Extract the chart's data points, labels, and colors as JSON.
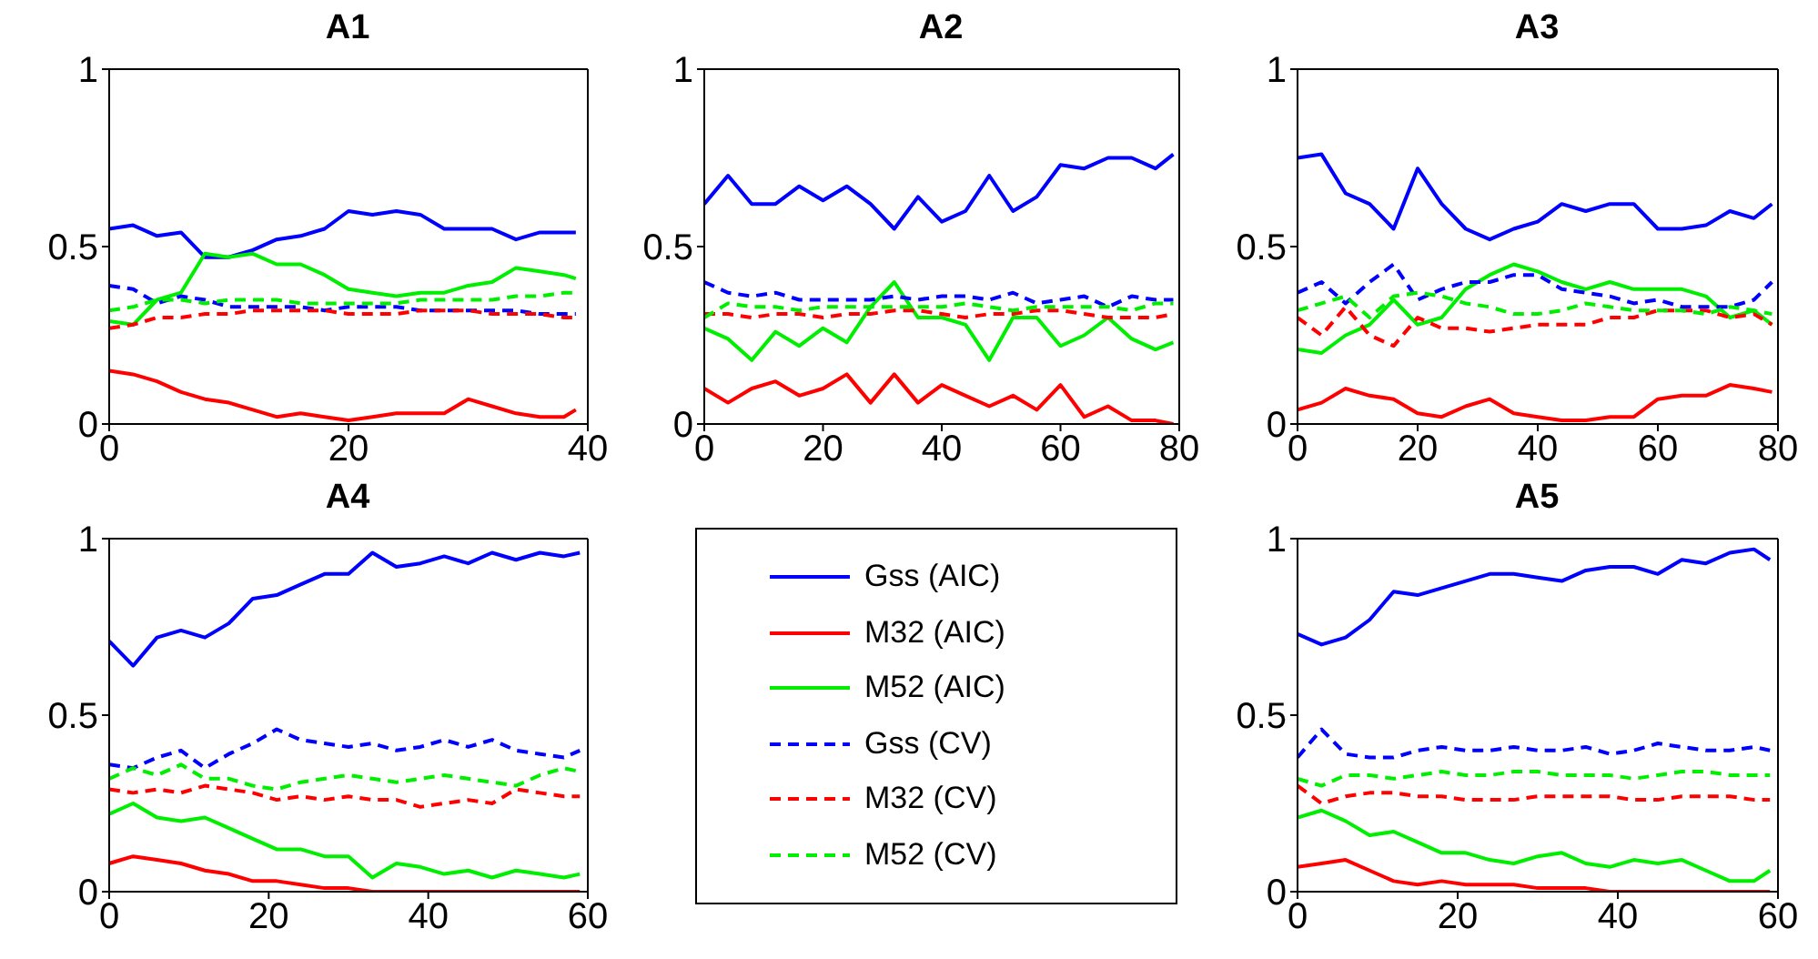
{
  "chart_data": [
    {
      "type": "line",
      "title": "A1",
      "x": [
        0,
        2,
        4,
        6,
        8,
        10,
        12,
        14,
        16,
        18,
        20,
        22,
        24,
        26,
        28,
        30,
        32,
        34,
        36,
        38,
        39
      ],
      "xlim": [
        0,
        40
      ],
      "xticks": [
        0,
        20,
        40
      ],
      "ylim": [
        0,
        1
      ],
      "yticks": [
        0,
        0.5,
        1
      ],
      "series": [
        {
          "color": "#0000ff",
          "line_style": "solid",
          "values": [
            0.55,
            0.56,
            0.53,
            0.54,
            0.47,
            0.47,
            0.49,
            0.52,
            0.53,
            0.55,
            0.6,
            0.59,
            0.6,
            0.59,
            0.55,
            0.55,
            0.55,
            0.52,
            0.54,
            0.54,
            0.54
          ]
        },
        {
          "color": "#ff0000",
          "line_style": "solid",
          "values": [
            0.15,
            0.14,
            0.12,
            0.09,
            0.07,
            0.06,
            0.04,
            0.02,
            0.03,
            0.02,
            0.01,
            0.02,
            0.03,
            0.03,
            0.03,
            0.07,
            0.05,
            0.03,
            0.02,
            0.02,
            0.04
          ]
        },
        {
          "color": "#00ee00",
          "line_style": "solid",
          "values": [
            0.29,
            0.28,
            0.35,
            0.37,
            0.48,
            0.47,
            0.48,
            0.45,
            0.45,
            0.42,
            0.38,
            0.37,
            0.36,
            0.37,
            0.37,
            0.39,
            0.4,
            0.44,
            0.43,
            0.42,
            0.41
          ]
        },
        {
          "color": "#0000ff",
          "line_style": "dashed",
          "values": [
            0.39,
            0.38,
            0.34,
            0.36,
            0.35,
            0.33,
            0.33,
            0.33,
            0.33,
            0.32,
            0.33,
            0.33,
            0.33,
            0.32,
            0.32,
            0.32,
            0.32,
            0.32,
            0.31,
            0.31,
            0.31
          ]
        },
        {
          "color": "#ff0000",
          "line_style": "dashed",
          "values": [
            0.27,
            0.28,
            0.3,
            0.3,
            0.31,
            0.31,
            0.32,
            0.32,
            0.32,
            0.32,
            0.31,
            0.31,
            0.31,
            0.32,
            0.32,
            0.32,
            0.31,
            0.31,
            0.31,
            0.3,
            0.3
          ]
        },
        {
          "color": "#00ee00",
          "line_style": "dashed",
          "values": [
            0.32,
            0.33,
            0.35,
            0.35,
            0.34,
            0.35,
            0.35,
            0.35,
            0.34,
            0.34,
            0.34,
            0.34,
            0.34,
            0.35,
            0.35,
            0.35,
            0.35,
            0.36,
            0.36,
            0.37,
            0.37
          ]
        }
      ]
    },
    {
      "type": "line",
      "title": "A2",
      "x": [
        0,
        4,
        8,
        12,
        16,
        20,
        24,
        28,
        32,
        36,
        40,
        44,
        48,
        52,
        56,
        60,
        64,
        68,
        72,
        76,
        79
      ],
      "xlim": [
        0,
        80
      ],
      "xticks": [
        0,
        20,
        40,
        60,
        80
      ],
      "ylim": [
        0,
        1
      ],
      "yticks": [
        0,
        0.5,
        1
      ],
      "series": [
        {
          "color": "#0000ff",
          "line_style": "solid",
          "values": [
            0.62,
            0.7,
            0.62,
            0.62,
            0.67,
            0.63,
            0.67,
            0.62,
            0.55,
            0.64,
            0.57,
            0.6,
            0.7,
            0.6,
            0.64,
            0.73,
            0.72,
            0.75,
            0.75,
            0.72,
            0.76
          ]
        },
        {
          "color": "#ff0000",
          "line_style": "solid",
          "values": [
            0.1,
            0.06,
            0.1,
            0.12,
            0.08,
            0.1,
            0.14,
            0.06,
            0.14,
            0.06,
            0.11,
            0.08,
            0.05,
            0.08,
            0.04,
            0.11,
            0.02,
            0.05,
            0.01,
            0.01,
            0.0
          ]
        },
        {
          "color": "#00ee00",
          "line_style": "solid",
          "values": [
            0.27,
            0.24,
            0.18,
            0.26,
            0.22,
            0.27,
            0.23,
            0.33,
            0.4,
            0.3,
            0.3,
            0.28,
            0.18,
            0.3,
            0.3,
            0.22,
            0.25,
            0.3,
            0.24,
            0.21,
            0.23
          ]
        },
        {
          "color": "#0000ff",
          "line_style": "dashed",
          "values": [
            0.4,
            0.37,
            0.36,
            0.37,
            0.35,
            0.35,
            0.35,
            0.35,
            0.36,
            0.35,
            0.36,
            0.36,
            0.35,
            0.37,
            0.34,
            0.35,
            0.36,
            0.33,
            0.36,
            0.35,
            0.35
          ]
        },
        {
          "color": "#ff0000",
          "line_style": "dashed",
          "values": [
            0.31,
            0.31,
            0.3,
            0.31,
            0.31,
            0.3,
            0.31,
            0.31,
            0.32,
            0.32,
            0.31,
            0.3,
            0.31,
            0.31,
            0.32,
            0.32,
            0.31,
            0.3,
            0.3,
            0.3,
            0.31
          ]
        },
        {
          "color": "#00ee00",
          "line_style": "dashed",
          "values": [
            0.3,
            0.34,
            0.33,
            0.33,
            0.32,
            0.33,
            0.33,
            0.33,
            0.33,
            0.33,
            0.33,
            0.34,
            0.33,
            0.32,
            0.33,
            0.33,
            0.33,
            0.33,
            0.32,
            0.34,
            0.34
          ]
        }
      ]
    },
    {
      "type": "line",
      "title": "A3",
      "x": [
        0,
        4,
        8,
        12,
        16,
        20,
        24,
        28,
        32,
        36,
        40,
        44,
        48,
        52,
        56,
        60,
        64,
        68,
        72,
        76,
        79
      ],
      "xlim": [
        0,
        80
      ],
      "xticks": [
        0,
        20,
        40,
        60,
        80
      ],
      "ylim": [
        0,
        1
      ],
      "yticks": [
        0,
        0.5,
        1
      ],
      "series": [
        {
          "color": "#0000ff",
          "line_style": "solid",
          "values": [
            0.75,
            0.76,
            0.65,
            0.62,
            0.55,
            0.72,
            0.62,
            0.55,
            0.52,
            0.55,
            0.57,
            0.62,
            0.6,
            0.62,
            0.62,
            0.55,
            0.55,
            0.56,
            0.6,
            0.58,
            0.62
          ]
        },
        {
          "color": "#ff0000",
          "line_style": "solid",
          "values": [
            0.04,
            0.06,
            0.1,
            0.08,
            0.07,
            0.03,
            0.02,
            0.05,
            0.07,
            0.03,
            0.02,
            0.01,
            0.01,
            0.02,
            0.02,
            0.07,
            0.08,
            0.08,
            0.11,
            0.1,
            0.09
          ]
        },
        {
          "color": "#00ee00",
          "line_style": "solid",
          "values": [
            0.21,
            0.2,
            0.25,
            0.28,
            0.35,
            0.28,
            0.3,
            0.38,
            0.42,
            0.45,
            0.43,
            0.4,
            0.38,
            0.4,
            0.38,
            0.38,
            0.38,
            0.36,
            0.3,
            0.32,
            0.28
          ]
        },
        {
          "color": "#0000ff",
          "line_style": "dashed",
          "values": [
            0.37,
            0.4,
            0.34,
            0.4,
            0.45,
            0.35,
            0.38,
            0.4,
            0.4,
            0.42,
            0.42,
            0.38,
            0.37,
            0.36,
            0.34,
            0.35,
            0.33,
            0.33,
            0.33,
            0.35,
            0.4
          ]
        },
        {
          "color": "#ff0000",
          "line_style": "dashed",
          "values": [
            0.3,
            0.25,
            0.33,
            0.25,
            0.22,
            0.3,
            0.27,
            0.27,
            0.26,
            0.27,
            0.28,
            0.28,
            0.28,
            0.3,
            0.3,
            0.32,
            0.32,
            0.32,
            0.3,
            0.31,
            0.28
          ]
        },
        {
          "color": "#00ee00",
          "line_style": "dashed",
          "values": [
            0.32,
            0.34,
            0.36,
            0.3,
            0.36,
            0.37,
            0.36,
            0.34,
            0.33,
            0.31,
            0.31,
            0.32,
            0.34,
            0.33,
            0.32,
            0.32,
            0.32,
            0.31,
            0.33,
            0.32,
            0.31
          ]
        }
      ]
    },
    {
      "type": "line",
      "title": "A4",
      "legend": "right",
      "x": [
        0,
        3,
        6,
        9,
        12,
        15,
        18,
        21,
        24,
        27,
        30,
        33,
        36,
        39,
        42,
        45,
        48,
        51,
        54,
        57,
        59
      ],
      "xlim": [
        0,
        60
      ],
      "xticks": [
        0,
        20,
        40,
        60
      ],
      "ylim": [
        0,
        1
      ],
      "yticks": [
        0,
        0.5,
        1
      ],
      "series": [
        {
          "name": "Gss (AIC)",
          "color": "#0000ff",
          "line_style": "solid",
          "values": [
            0.71,
            0.64,
            0.72,
            0.74,
            0.72,
            0.76,
            0.83,
            0.84,
            0.87,
            0.9,
            0.9,
            0.96,
            0.92,
            0.93,
            0.95,
            0.93,
            0.96,
            0.94,
            0.96,
            0.95,
            0.96
          ]
        },
        {
          "name": "M32 (AIC)",
          "color": "#ff0000",
          "line_style": "solid",
          "values": [
            0.08,
            0.1,
            0.09,
            0.08,
            0.06,
            0.05,
            0.03,
            0.03,
            0.02,
            0.01,
            0.01,
            0.0,
            0.0,
            0.0,
            0.0,
            0.0,
            0.0,
            0.0,
            0.0,
            0.0,
            0.0
          ]
        },
        {
          "name": "M52 (AIC)",
          "color": "#00ee00",
          "line_style": "solid",
          "values": [
            0.22,
            0.25,
            0.21,
            0.2,
            0.21,
            0.18,
            0.15,
            0.12,
            0.12,
            0.1,
            0.1,
            0.04,
            0.08,
            0.07,
            0.05,
            0.06,
            0.04,
            0.06,
            0.05,
            0.04,
            0.05
          ]
        },
        {
          "name": "Gss (CV)",
          "color": "#0000ff",
          "line_style": "dashed",
          "values": [
            0.36,
            0.35,
            0.38,
            0.4,
            0.35,
            0.39,
            0.42,
            0.46,
            0.43,
            0.42,
            0.41,
            0.42,
            0.4,
            0.41,
            0.43,
            0.41,
            0.43,
            0.4,
            0.39,
            0.38,
            0.4
          ]
        },
        {
          "name": "M32 (CV)",
          "color": "#ff0000",
          "line_style": "dashed",
          "values": [
            0.29,
            0.28,
            0.29,
            0.28,
            0.3,
            0.29,
            0.28,
            0.26,
            0.27,
            0.26,
            0.27,
            0.26,
            0.26,
            0.24,
            0.25,
            0.26,
            0.25,
            0.29,
            0.28,
            0.27,
            0.27
          ]
        },
        {
          "name": "M52 (CV)",
          "color": "#00ee00",
          "line_style": "dashed",
          "values": [
            0.32,
            0.35,
            0.33,
            0.36,
            0.32,
            0.32,
            0.3,
            0.29,
            0.31,
            0.32,
            0.33,
            0.32,
            0.31,
            0.32,
            0.33,
            0.32,
            0.31,
            0.3,
            0.33,
            0.35,
            0.34
          ]
        }
      ]
    },
    {
      "type": "line",
      "title": "A5",
      "x": [
        0,
        3,
        6,
        9,
        12,
        15,
        18,
        21,
        24,
        27,
        30,
        33,
        36,
        39,
        42,
        45,
        48,
        51,
        54,
        57,
        59
      ],
      "xlim": [
        0,
        60
      ],
      "xticks": [
        0,
        20,
        40,
        60
      ],
      "ylim": [
        0,
        1
      ],
      "yticks": [
        0,
        0.5,
        1
      ],
      "series": [
        {
          "color": "#0000ff",
          "line_style": "solid",
          "values": [
            0.73,
            0.7,
            0.72,
            0.77,
            0.85,
            0.84,
            0.86,
            0.88,
            0.9,
            0.9,
            0.89,
            0.88,
            0.91,
            0.92,
            0.92,
            0.9,
            0.94,
            0.93,
            0.96,
            0.97,
            0.94
          ]
        },
        {
          "color": "#ff0000",
          "line_style": "solid",
          "values": [
            0.07,
            0.08,
            0.09,
            0.06,
            0.03,
            0.02,
            0.03,
            0.02,
            0.02,
            0.02,
            0.01,
            0.01,
            0.01,
            0.0,
            0.0,
            0.0,
            0.0,
            0.0,
            0.0,
            0.0,
            0.0
          ]
        },
        {
          "color": "#00ee00",
          "line_style": "solid",
          "values": [
            0.21,
            0.23,
            0.2,
            0.16,
            0.17,
            0.14,
            0.11,
            0.11,
            0.09,
            0.08,
            0.1,
            0.11,
            0.08,
            0.07,
            0.09,
            0.08,
            0.09,
            0.06,
            0.03,
            0.03,
            0.06
          ]
        },
        {
          "color": "#0000ff",
          "line_style": "dashed",
          "values": [
            0.38,
            0.46,
            0.39,
            0.38,
            0.38,
            0.4,
            0.41,
            0.4,
            0.4,
            0.41,
            0.4,
            0.4,
            0.41,
            0.39,
            0.4,
            0.42,
            0.41,
            0.4,
            0.4,
            0.41,
            0.4
          ]
        },
        {
          "color": "#ff0000",
          "line_style": "dashed",
          "values": [
            0.3,
            0.25,
            0.27,
            0.28,
            0.28,
            0.27,
            0.27,
            0.26,
            0.26,
            0.26,
            0.27,
            0.27,
            0.27,
            0.27,
            0.26,
            0.26,
            0.27,
            0.27,
            0.27,
            0.26,
            0.26
          ]
        },
        {
          "color": "#00ee00",
          "line_style": "dashed",
          "values": [
            0.32,
            0.3,
            0.33,
            0.33,
            0.32,
            0.33,
            0.34,
            0.33,
            0.33,
            0.34,
            0.34,
            0.33,
            0.33,
            0.33,
            0.32,
            0.33,
            0.34,
            0.34,
            0.33,
            0.33,
            0.33
          ]
        }
      ]
    }
  ]
}
